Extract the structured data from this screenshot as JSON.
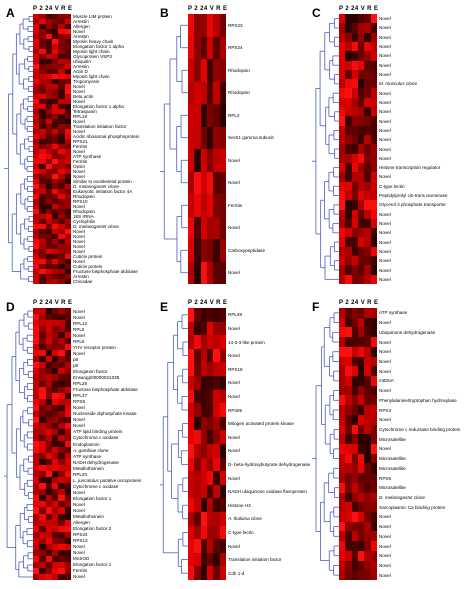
{
  "columns": "P 2 24 V R E",
  "panels": [
    {
      "id": "A",
      "label": "A",
      "genes": [
        "Muscle LIM protein",
        "Arrestin",
        "Allergen",
        "Novel",
        "Arrestin",
        "Myosin heavy chain",
        "Elongation factor 1 alpha",
        "Myosin light chain",
        "Glycoprotein VSP3",
        "Ubiquitin",
        "Arrestin",
        "Actin D",
        "Myosin light chain",
        "Tropomyosin",
        "Novel",
        "Novel",
        "Beta actin",
        "Novel",
        "Elongation factor 1 alpha",
        "Tetraspanin",
        "RPL18",
        "Novel",
        "Translation initiation factor",
        "Novel",
        "Acidic ribosomal phosphoprotein",
        "RPS21",
        "Ferritin",
        "Novel",
        "ATP synthase",
        "Ferritin",
        "Opsin",
        "Novel",
        "Novel",
        "Similar to exoskeletal protein",
        "D. melanogaster clone",
        "Eukaryotic initiation factor 4A",
        "Rhodopsin",
        "RPS10",
        "Novel",
        "Rhodopsin",
        "18S rRNA",
        "Cyclophilin",
        "D. melanogaster clone",
        "Novel",
        "Novel",
        "Novel",
        "Novel",
        "Novel",
        "Cuticle protein",
        "Novel",
        "Cuticle protein",
        "Fructose bisphosphate aldolase",
        "Arrestin",
        "Chicadae"
      ]
    },
    {
      "id": "B",
      "label": "B",
      "genes": [
        "RPS23",
        "RPS24",
        "Rhodopsin",
        "Rhodopsin",
        "RPL3",
        "Sec61 gamma subunit",
        "Novel",
        "Novel",
        "Ferritin",
        "Novel",
        "Carboxypeptidase",
        "Novel"
      ]
    },
    {
      "id": "C",
      "label": "C",
      "genes": [
        "Novel",
        "Novel",
        "Novel",
        "Novel",
        "Novel",
        "Novel",
        "Novel",
        "M. musculus clone",
        "Novel",
        "Novel",
        "Novel",
        "Novel",
        "Novel",
        "Novel",
        "Novel",
        "Novel",
        "Histone transcription regulator",
        "Novel",
        "C-type lectin",
        "Peptidylprolyl cis-trans isomerase",
        "Glycerol 3 phosphate transporter",
        "Novel",
        "Novel",
        "Novel",
        "Novel",
        "Novel",
        "Novel",
        "Novel",
        "Novel"
      ]
    },
    {
      "id": "D",
      "label": "D",
      "genes": [
        "Novel",
        "Novel",
        "RPL12",
        "RPL5",
        "Novel",
        "RPL6",
        "YHV receptor protein",
        "Novel",
        "p8",
        "p8",
        "Elongation factor",
        "Ensangp00000021035",
        "RPL28",
        "Fructose bisphosphate aldolase",
        "RPL37",
        "RPS9",
        "Novel",
        "Nucleoside diphosphate kinase",
        "Novel",
        "Novel",
        "ATP lipid binding protein",
        "Cytochrome c oxidase",
        "Endoplasmin",
        "A. gambiae clone",
        "ATP synthase",
        "NADH dehydrogenase",
        "Metallothionein",
        "RPL20",
        "L. juncatulus putative oncoprotein",
        "Cytochrome c oxidase",
        "Novel",
        "Elongation factor 1",
        "Novel",
        "Novel",
        "Metallothionein",
        "Allergen",
        "Elongation factor 2",
        "RPS24",
        "RPS13",
        "Novel",
        "Novel",
        "MnSOD",
        "Elongation factor 1",
        "Ferritin",
        "Novel"
      ]
    },
    {
      "id": "E",
      "label": "E",
      "genes": [
        "RPL38",
        "Novel",
        "14-3-3 like protein",
        "Novel",
        "RPS18",
        "Novel",
        "Novel",
        "RP405",
        "Mitogen activated protein kinase",
        "Novel",
        "Novel",
        "D- beta-hydroxybutyrate dehydrogenase",
        "Novel",
        "NADH ubiquinone oxidase flavoprotein",
        "Histone H3",
        "A. thaliana clone",
        "C-type lectin",
        "Novel",
        "Translation initiation factor",
        "Cdh 1-d"
      ]
    },
    {
      "id": "F",
      "label": "F",
      "genes": [
        "ATP synthase",
        "Novel",
        "Ubiquinone dehydrogenase",
        "Novel",
        "Novel",
        "Novel",
        "Novel",
        "mtDNA",
        "Novel",
        "Phenylalanine/tryptophan hydroxylase",
        "RPS3",
        "Novel",
        "Cytochrome c reductase binding protein",
        "Microsatellite",
        "Novel",
        "Microsatellite",
        "Microsatellite",
        "RPS5",
        "Microsatellite",
        "D. melanogaster clone",
        "Sarcoplasmic Ca binding protein",
        "Novel",
        "Novel",
        "Novel",
        "Novel",
        "Novel",
        "Novel",
        "Novel"
      ]
    }
  ],
  "colors": {
    "low": "#1a0000",
    "high": "#ff1010",
    "dendrogram": "#4a5fbf"
  }
}
